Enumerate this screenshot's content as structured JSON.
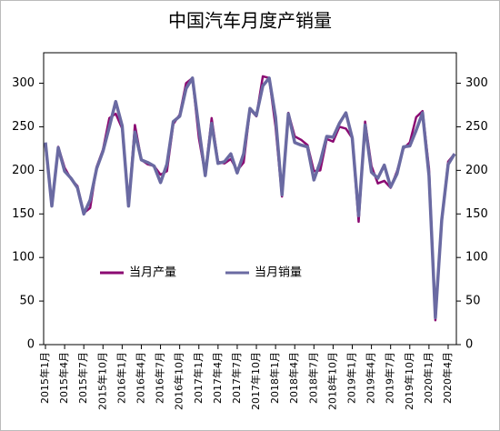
{
  "chart_data": {
    "type": "line",
    "title": "中国汽车月度产销量",
    "categories": [
      "2015年1月",
      null,
      null,
      "2015年4月",
      null,
      null,
      "2015年7月",
      null,
      null,
      "2015年10月",
      null,
      null,
      "2016年1月",
      null,
      null,
      "2016年4月",
      null,
      null,
      "2016年7月",
      null,
      null,
      "2016年10月",
      null,
      null,
      "2017年1月",
      null,
      null,
      "2017年4月",
      null,
      null,
      "2017年7月",
      null,
      null,
      "2017年10月",
      null,
      null,
      "2018年1月",
      null,
      null,
      "2018年4月",
      null,
      null,
      "2018年7月",
      null,
      null,
      "2018年10月",
      null,
      null,
      "2019年1月",
      null,
      null,
      "2019年4月",
      null,
      null,
      "2019年7月",
      null,
      null,
      "2019年10月",
      null,
      null,
      "2020年1月",
      null,
      null,
      "2020年4月",
      null
    ],
    "series": [
      {
        "name": "当月产量",
        "color": "#8b0a72",
        "values": [
          228,
          160,
          227,
          203,
          190,
          182,
          151,
          157,
          204,
          224,
          260,
          265,
          248,
          160,
          252,
          212,
          207,
          205,
          195,
          199,
          253,
          264,
          300,
          306,
          237,
          195,
          260,
          210,
          208,
          213,
          200,
          209,
          270,
          262,
          308,
          306,
          250,
          170,
          266,
          239,
          235,
          229,
          199,
          200,
          236,
          233,
          250,
          248,
          237,
          141,
          256,
          205,
          185,
          188,
          180,
          199,
          225,
          232,
          261,
          268,
          202,
          28,
          143,
          210,
          219
        ]
      },
      {
        "name": "当月销量",
        "color": "#6a6aa2",
        "values": [
          232,
          159,
          226,
          199,
          191,
          180,
          150,
          166,
          202,
          222,
          250,
          279,
          251,
          159,
          244,
          212,
          209,
          205,
          186,
          207,
          256,
          262,
          294,
          306,
          248,
          194,
          254,
          208,
          210,
          219,
          197,
          219,
          271,
          263,
          297,
          306,
          261,
          172,
          265,
          232,
          229,
          227,
          189,
          210,
          239,
          238,
          254,
          266,
          237,
          148,
          252,
          198,
          191,
          206,
          181,
          196,
          227,
          228,
          246,
          266,
          194,
          31,
          143,
          207,
          219
        ]
      }
    ],
    "ylim": [
      0,
      335
    ],
    "yticks": [
      0,
      50,
      100,
      150,
      200,
      250,
      300
    ],
    "y2lim": [
      0,
      335
    ],
    "y2ticks": [
      0,
      50,
      100,
      150,
      200,
      250,
      300
    ]
  }
}
